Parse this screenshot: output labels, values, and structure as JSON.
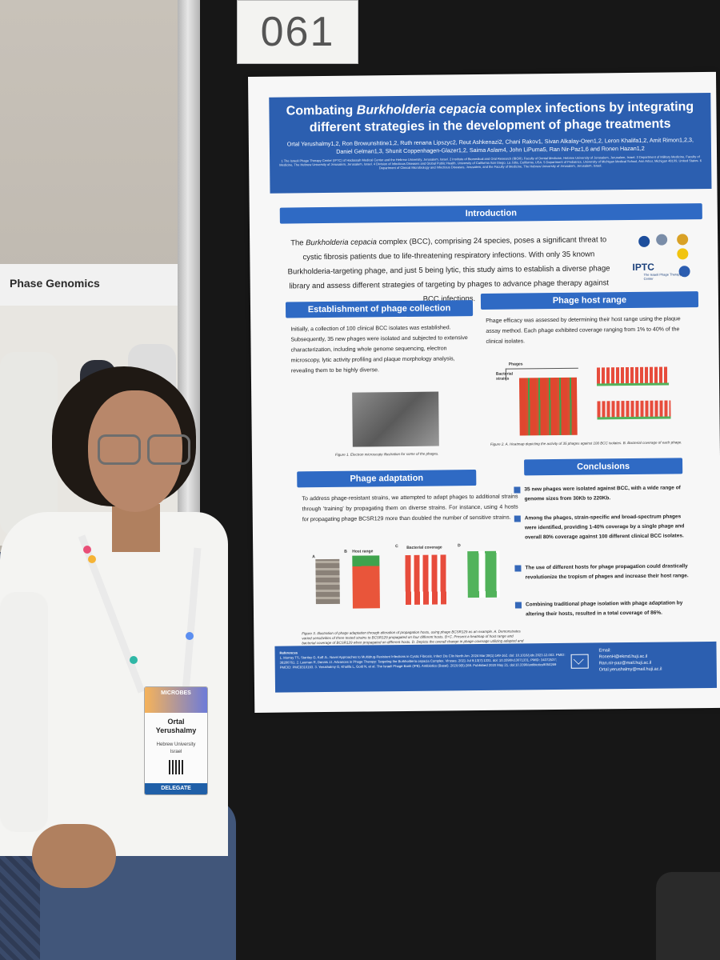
{
  "booth": {
    "sign": "Phase Genomics"
  },
  "poster_number": "061",
  "badge": {
    "event": "MICROBES",
    "first_name": "Ortal",
    "last_name": "Yerushalmy",
    "org": "Hebrew University",
    "country": "Israel",
    "role": "DELEGATE"
  },
  "poster": {
    "title_pre": "Combating ",
    "title_italic": "Burkholderia cepacia",
    "title_post": " complex infections by integrating different strategies in the development of phage treatments",
    "authors": "Ortal Yerushalmy1,2, Ron Browunshtine1,2, Ruth renana Lipszyc2, Reut Ashkenazi2, Chani Rakov1, Sivan Alkalay-Oren1,2, Leron Khalifa1,2, Amit Rimon1,2,3, Daniel Gelman1,3, Shunit Coppenhagen-Glazer1,2, Saima Aslam4, John LiPuma5, Ran Nir-Paz1,6 and Ronen Hazan1,2",
    "affiliations": "1 The Israeli Phage Therapy Center (IPTC) of Hadassah Medical Center and the Hebrew University, Jerusalem, Israel. 2 Institute of Biomedical and Oral Research (IBOR), Faculty of Dental Medicine, Hebrew University of Jerusalem, Jerusalem, Israel. 3 Department of Military Medicine, Faculty of Medicine, The Hebrew University of Jerusalem, Jerusalem, Israel. 4 Division of Infectious Diseases and Global Public Health, University of California San Diego, La Jolla, California, USA. 5 Department of Pediatrics, University of Michigan Medical School, Ann Arbor, Michigan 48109, United States. 6 Department of Clinical Microbiology and Infectious Diseases, Jerusalem, and the Faculty of Medicine, The Hebrew University of Jerusalem, Jerusalem, Israel.",
    "intro_header": "Introduction",
    "intro_1": "The ",
    "intro_italic": "Burkholderia cepacia",
    "intro_2": " complex (BCC), comprising 24 species, poses a significant threat to cystic fibrosis patients due to life-threatening respiratory infections. With only 35 known Burkholderia-targeting phage, and just 5 being lytic, this study aims to establish a diverse phage library and assess different strategies of targeting by phages to advance phage therapy against BCC infections.",
    "logo_iptc": "IPTC",
    "logo_iptc_sub": "The Israeli Phage Therapy Center",
    "collection_header": "Establishment of phage collection",
    "collection_text": "Initially, a collection of 100 clinical BCC isolates was established. Subsequently, 35 new phages were isolated and subjected to extensive characterization, including whole genome sequencing, electron microscopy, lytic activity profiling and plaque morphology analysis, revealing them to be highly diverse.",
    "fig1_caption": "Figure 1. Electron microscopy illustration for some of the phages.",
    "hostrange_header": "Phage host range",
    "hostrange_text": "Phage efficacy was assessed by determining their host range using the plaque assay method. Each phage exhibited coverage ranging from 1% to 40% of the clinical isolates.",
    "fig2_caption": "Figure 2. A. Heatmap depicting the activity of 35 phages against 100 BCC isolates. B. Bacterial coverage of each phage.",
    "fig2_label_phages": "Phages",
    "fig2_label_strains": "Bacterial strains",
    "adaptation_header": "Phage adaptation",
    "adaptation_text": "To address phage-resistant strains, we attempted to adapt phages to additional strains through 'training' by propagating them on diverse strains. For instance, using 4 hosts for propagating phage BCSR129 more than doubled the number of sensitive strains.",
    "fig3_panel_a": "A",
    "fig3_panel_b": "B",
    "fig3_panel_c": "C",
    "fig3_panel_d": "D",
    "fig3_b_title": "Host range",
    "fig3_c_title": "Bacterial coverage",
    "fig3_caption": "Figure 3. Illustration of phage adaptation through alteration of propagation hosts, using phage BCSR129 as an example. A. Demonstrates varied sensitivities of three tested strains to BCSR129 propagated on four different hosts. B+C. Present a heatmap of host range and bacterial coverage of BCSR129 when propagated on different hosts. D. Depicts the overall change in phage coverage utilizing adapted and natural phages.",
    "conclusions_header": "Conclusions",
    "conclusions": [
      "35 new phages were isolated against BCC, with a wide range of genome sizes from 30Kb to 220Kb.",
      "Among the phages, strain-specific and broad-spectrum phages were identified, providing 1-40% coverage by a single phage and overall 80% coverage against 100 different clinical BCC isolates.",
      "The use of different hosts for phage propagation could drastically revolutionize the tropism of phages and increase their host range.",
      "Combining traditional phage isolation with phage adaptation by altering their hosts, resulted in a total coverage of 86%."
    ],
    "references_title": "References",
    "references": "1. Murray TS, Stanley G, Koff JL. Novel Approaches to Multidrug-Resistant Infections in Cystic Fibrosis. Infect Dis Clin North Am. 2024 Mar;38(1):149-162. doi: 10.1016/j.idc.2023.12.002. PMID: 38280761. 2. Leuman R, Dennis JJ. Advances in Phage Therapy: Targeting the Burkholderia cepacia Complex. Viruses. 2021 Jul 9;13(7):1331. doi: 10.3390/v13071331. PMID: 34372537; PMCID: PMC8310193. 3. Yerushalmy O, Khalifa L, Gold N, et al. The Israeli Phage Bank (IPB). Antibiotics (Basel). 2020;9(5):269. Published 2020 May 21. doi:10.3390/antibiotics9050269",
    "contacts_title": "Email:",
    "contacts": [
      "RonenH@ekmd.huji.ac.il",
      "Ran.nir-paz@mail.huji.ac.il",
      "Ortal.yerushalmy@mail.huji.ac.il"
    ]
  }
}
